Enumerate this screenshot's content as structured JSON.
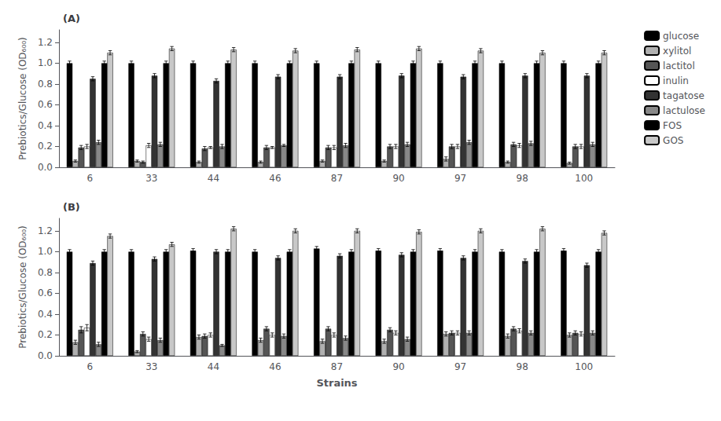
{
  "chart_data": [
    {
      "type": "bar",
      "title": "(A)",
      "categories": [
        "6",
        "33",
        "44",
        "46",
        "87",
        "90",
        "97",
        "98",
        "100"
      ],
      "ylabel": "Prebiotics/Glucose (OD₆₀₀)",
      "ylim": [
        0.0,
        1.32
      ],
      "yticks": [
        {
          "value": 0.0,
          "label": "0.0"
        },
        0.2,
        0.4,
        0.6,
        0.8,
        {
          "value": 1.0,
          "label": "1.0"
        },
        1.2
      ],
      "grid": false,
      "legend": "right",
      "series": [
        {
          "name": "glucose",
          "color": "#000000",
          "values": [
            1.0,
            1.0,
            1.0,
            1.0,
            1.0,
            1.0,
            1.0,
            1.0,
            1.0
          ],
          "errors": [
            0.02,
            0.02,
            0.02,
            0.02,
            0.02,
            0.02,
            0.02,
            0.02,
            0.02
          ]
        },
        {
          "name": "xylitol",
          "color": "#b0b0b0",
          "values": [
            0.06,
            0.06,
            0.05,
            0.05,
            0.06,
            0.06,
            0.08,
            0.05,
            0.04
          ],
          "errors": [
            0.01,
            0.01,
            0.01,
            0.01,
            0.01,
            0.01,
            0.02,
            0.01,
            0.01
          ]
        },
        {
          "name": "lactitol",
          "color": "#555555",
          "values": [
            0.19,
            0.05,
            0.18,
            0.19,
            0.19,
            0.2,
            0.2,
            0.22,
            0.2
          ],
          "errors": [
            0.02,
            0.01,
            0.02,
            0.02,
            0.02,
            0.02,
            0.02,
            0.02,
            0.02
          ]
        },
        {
          "name": "inulin",
          "color": "#ffffff",
          "values": [
            0.2,
            0.21,
            0.19,
            0.19,
            0.19,
            0.2,
            0.2,
            0.21,
            0.2
          ],
          "errors": [
            0.02,
            0.02,
            0.01,
            0.01,
            0.02,
            0.02,
            0.02,
            0.02,
            0.02
          ]
        },
        {
          "name": "tagatose",
          "color": "#333333",
          "values": [
            0.85,
            0.88,
            0.83,
            0.87,
            0.87,
            0.88,
            0.87,
            0.88,
            0.88
          ],
          "errors": [
            0.02,
            0.02,
            0.02,
            0.02,
            0.02,
            0.02,
            0.02,
            0.02,
            0.02
          ]
        },
        {
          "name": "lactulose",
          "color": "#888888",
          "values": [
            0.24,
            0.22,
            0.2,
            0.21,
            0.21,
            0.22,
            0.24,
            0.23,
            0.22
          ],
          "errors": [
            0.02,
            0.02,
            0.02,
            0.01,
            0.02,
            0.02,
            0.02,
            0.02,
            0.02
          ]
        },
        {
          "name": "FOS",
          "color": "#000000",
          "values": [
            1.0,
            1.0,
            1.0,
            1.0,
            1.0,
            1.0,
            1.0,
            1.0,
            1.0
          ],
          "errors": [
            0.02,
            0.02,
            0.02,
            0.02,
            0.02,
            0.02,
            0.02,
            0.02,
            0.02
          ]
        },
        {
          "name": "GOS",
          "color": "#c8c8c8",
          "values": [
            1.1,
            1.14,
            1.13,
            1.12,
            1.13,
            1.14,
            1.12,
            1.1,
            1.1
          ],
          "errors": [
            0.02,
            0.02,
            0.02,
            0.02,
            0.02,
            0.02,
            0.02,
            0.02,
            0.02
          ]
        }
      ]
    },
    {
      "type": "bar",
      "title": "(B)",
      "categories": [
        "6",
        "33",
        "44",
        "46",
        "87",
        "90",
        "97",
        "98",
        "100"
      ],
      "xlabel": "Strains",
      "ylabel": "Prebiotics/Glucose (OD₆₀₀)",
      "ylim": [
        0.0,
        1.32
      ],
      "yticks": [
        {
          "value": 0.0,
          "label": "0.0"
        },
        0.2,
        0.4,
        0.6,
        0.8,
        {
          "value": 1.0,
          "label": "1.0"
        },
        1.2
      ],
      "grid": false,
      "series": [
        {
          "name": "glucose",
          "color": "#000000",
          "values": [
            1.0,
            1.0,
            1.01,
            1.0,
            1.03,
            1.01,
            1.01,
            1.0,
            1.01
          ],
          "errors": [
            0.02,
            0.02,
            0.02,
            0.02,
            0.02,
            0.02,
            0.02,
            0.02,
            0.02
          ]
        },
        {
          "name": "xylitol",
          "color": "#b0b0b0",
          "values": [
            0.13,
            0.04,
            0.18,
            0.15,
            0.14,
            0.14,
            0.21,
            0.19,
            0.2
          ],
          "errors": [
            0.02,
            0.01,
            0.02,
            0.02,
            0.02,
            0.02,
            0.02,
            0.02,
            0.02
          ]
        },
        {
          "name": "lactitol",
          "color": "#555555",
          "values": [
            0.25,
            0.21,
            0.19,
            0.26,
            0.26,
            0.25,
            0.22,
            0.26,
            0.22
          ],
          "errors": [
            0.03,
            0.02,
            0.02,
            0.02,
            0.02,
            0.02,
            0.02,
            0.02,
            0.02
          ]
        },
        {
          "name": "inulin",
          "color": "#ffffff",
          "values": [
            0.27,
            0.16,
            0.2,
            0.2,
            0.2,
            0.22,
            0.22,
            0.24,
            0.21
          ],
          "errors": [
            0.03,
            0.02,
            0.02,
            0.02,
            0.02,
            0.02,
            0.02,
            0.02,
            0.02
          ]
        },
        {
          "name": "tagatose",
          "color": "#333333",
          "values": [
            0.89,
            0.93,
            1.0,
            0.94,
            0.96,
            0.97,
            0.94,
            0.91,
            0.87
          ],
          "errors": [
            0.02,
            0.02,
            0.02,
            0.02,
            0.02,
            0.02,
            0.02,
            0.02,
            0.02
          ]
        },
        {
          "name": "lactulose",
          "color": "#888888",
          "values": [
            0.11,
            0.15,
            0.1,
            0.19,
            0.17,
            0.16,
            0.22,
            0.22,
            0.22
          ],
          "errors": [
            0.02,
            0.02,
            0.01,
            0.02,
            0.02,
            0.02,
            0.02,
            0.02,
            0.02
          ]
        },
        {
          "name": "FOS",
          "color": "#000000",
          "values": [
            1.0,
            1.0,
            1.0,
            1.0,
            1.0,
            1.0,
            1.0,
            1.0,
            1.0
          ],
          "errors": [
            0.02,
            0.02,
            0.02,
            0.02,
            0.02,
            0.02,
            0.02,
            0.02,
            0.02
          ]
        },
        {
          "name": "GOS",
          "color": "#c8c8c8",
          "values": [
            1.15,
            1.07,
            1.22,
            1.2,
            1.2,
            1.19,
            1.2,
            1.22,
            1.18
          ],
          "errors": [
            0.02,
            0.02,
            0.02,
            0.02,
            0.02,
            0.02,
            0.02,
            0.02,
            0.02
          ]
        }
      ]
    }
  ]
}
